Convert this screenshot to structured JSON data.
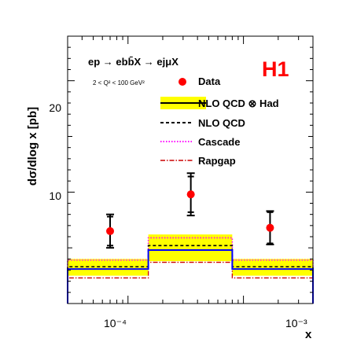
{
  "chart_data": {
    "type": "step-histogram",
    "experiment_label": "H1",
    "process": "ep → ebb̄X → ejμX",
    "kinematic_range": "2 < Q² < 100 GeV²",
    "xlabel": "x",
    "ylabel": "dσ/dlog x [pb]",
    "x_scale": "log",
    "xlim": [
      3e-05,
      0.004
    ],
    "ylim": [
      0,
      24
    ],
    "x_tick_labels": [
      "10⁻⁴",
      "10⁻³"
    ],
    "y_tick_labels": [
      "10",
      "20"
    ],
    "bins": [
      {
        "low": 3e-05,
        "high": 0.00015
      },
      {
        "low": 0.00015,
        "high": 0.0008
      },
      {
        "low": 0.0008,
        "high": 0.004
      }
    ],
    "data": {
      "name": "Data",
      "color": "#ff0000",
      "x": [
        7e-05,
        0.00035,
        0.0017
      ],
      "y": [
        6.5,
        9.8,
        6.8
      ],
      "stat_err": [
        1.3,
        1.6,
        1.4
      ],
      "tot_err": [
        1.5,
        1.9,
        1.5
      ]
    },
    "series": [
      {
        "name": "NLO  QCD ⊗ Had",
        "style": "solid",
        "color": "#0000ff",
        "values": [
          3.1,
          4.8,
          3.1
        ],
        "band_low": [
          2.7,
          4.3,
          2.7
        ],
        "band_high": [
          3.5,
          5.6,
          3.5
        ],
        "band_outer_low": [
          2.5,
          3.8,
          2.5
        ],
        "band_outer_high": [
          4.0,
          6.2,
          4.0
        ],
        "band_color": "#ffff00"
      },
      {
        "name": "NLO  QCD",
        "style": "dashed",
        "color": "#000000",
        "values": [
          3.3,
          5.2,
          3.3
        ]
      },
      {
        "name": "Cascade",
        "style": "dotted",
        "color": "#ff00ff",
        "values": [
          3.9,
          5.9,
          3.9
        ]
      },
      {
        "name": "Rapgap",
        "style": "dashdot",
        "color": "#cc0000",
        "values": [
          2.3,
          3.7,
          2.3
        ]
      }
    ]
  }
}
